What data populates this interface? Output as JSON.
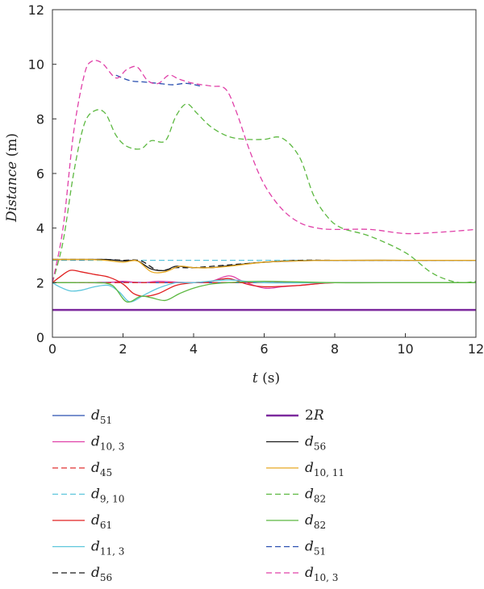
{
  "chart_data": {
    "type": "line",
    "title": "",
    "xlabel": {
      "var": "t",
      "unit": " (s)"
    },
    "ylabel": {
      "var": "Distance",
      "unit": " (m)"
    },
    "xlim": [
      0,
      12
    ],
    "ylim": [
      0,
      12
    ],
    "xticks": [
      0,
      2,
      4,
      6,
      8,
      10,
      12
    ],
    "yticks": [
      0,
      2,
      4,
      6,
      8,
      10,
      12
    ],
    "grid": false,
    "legend_position": "below-plot",
    "series": [
      {
        "name": "d_51",
        "label_main": "d",
        "label_sub": "51",
        "color": "#2a4fb0",
        "dash": "solid",
        "points": [
          [
            0,
            2.0
          ],
          [
            0.5,
            2.0
          ],
          [
            1,
            2.0
          ],
          [
            2,
            2.02
          ],
          [
            3,
            2.0
          ],
          [
            4,
            2.0
          ],
          [
            5,
            2.0
          ],
          [
            6,
            2.0
          ],
          [
            8,
            2.0
          ],
          [
            10,
            2.0
          ],
          [
            12,
            2.0
          ]
        ]
      },
      {
        "name": "d_10,3",
        "label_main": "d",
        "label_sub": "10, 3",
        "color": "#e040a8",
        "dash": "solid",
        "points": [
          [
            0,
            2.0
          ],
          [
            0.6,
            2.0
          ],
          [
            1.5,
            2.0
          ],
          [
            2,
            2.05
          ],
          [
            2.5,
            2.0
          ],
          [
            3,
            2.05
          ],
          [
            3.5,
            2.02
          ],
          [
            4,
            2.0
          ],
          [
            4.5,
            2.05
          ],
          [
            5,
            2.25
          ],
          [
            5.4,
            2.05
          ],
          [
            6,
            1.8
          ],
          [
            6.5,
            1.85
          ],
          [
            7,
            1.9
          ],
          [
            8,
            2.0
          ],
          [
            10,
            2.0
          ],
          [
            12,
            2.0
          ]
        ]
      },
      {
        "name": "d_45",
        "label_main": "d",
        "label_sub": "45",
        "color": "#e03030",
        "dash": "dashed",
        "points": [
          [
            0,
            2.0
          ],
          [
            1,
            2.0
          ],
          [
            2,
            2.0
          ],
          [
            3,
            2.0
          ],
          [
            4,
            2.0
          ],
          [
            5,
            2.0
          ],
          [
            6,
            2.0
          ],
          [
            8,
            2.0
          ],
          [
            10,
            2.0
          ],
          [
            12,
            2.0
          ]
        ]
      },
      {
        "name": "d_9,10",
        "label_main": "d",
        "label_sub": "9, 10",
        "color": "#5cc6dc",
        "dash": "dashed",
        "points": [
          [
            0,
            2.82
          ],
          [
            1,
            2.82
          ],
          [
            2,
            2.82
          ],
          [
            4,
            2.82
          ],
          [
            6,
            2.82
          ],
          [
            8,
            2.82
          ],
          [
            10,
            2.82
          ],
          [
            12,
            2.82
          ]
        ]
      },
      {
        "name": "d_61",
        "label_main": "d",
        "label_sub": "61",
        "color": "#e02020",
        "dash": "solid",
        "points": [
          [
            0,
            2.0
          ],
          [
            0.2,
            2.2
          ],
          [
            0.5,
            2.45
          ],
          [
            0.8,
            2.4
          ],
          [
            1.2,
            2.3
          ],
          [
            1.6,
            2.2
          ],
          [
            2,
            1.95
          ],
          [
            2.3,
            1.6
          ],
          [
            2.6,
            1.5
          ],
          [
            3,
            1.6
          ],
          [
            3.5,
            1.9
          ],
          [
            4,
            2.0
          ],
          [
            4.5,
            2.05
          ],
          [
            5,
            2.15
          ],
          [
            5.5,
            1.95
          ],
          [
            6,
            1.85
          ],
          [
            7,
            1.9
          ],
          [
            8,
            2.0
          ],
          [
            10,
            2.0
          ],
          [
            12,
            2.0
          ]
        ]
      },
      {
        "name": "d_11,3",
        "label_main": "d",
        "label_sub": "11, 3",
        "color": "#5cc6dc",
        "dash": "solid",
        "points": [
          [
            0,
            2.0
          ],
          [
            0.2,
            1.85
          ],
          [
            0.5,
            1.7
          ],
          [
            0.8,
            1.72
          ],
          [
            1.2,
            1.85
          ],
          [
            1.6,
            1.9
          ],
          [
            1.9,
            1.65
          ],
          [
            2.2,
            1.3
          ],
          [
            2.6,
            1.55
          ],
          [
            3,
            1.8
          ],
          [
            3.5,
            2.0
          ],
          [
            4,
            2.0
          ],
          [
            5,
            2.1
          ],
          [
            6,
            2.0
          ],
          [
            8,
            2.0
          ],
          [
            10,
            2.0
          ],
          [
            12,
            2.0
          ]
        ]
      },
      {
        "name": "d_56 (dashed)",
        "label_main": "d",
        "label_sub": "56",
        "color": "#1a1a1a",
        "dash": "dashed",
        "points": [
          [
            0,
            2.85
          ],
          [
            1,
            2.85
          ],
          [
            1.5,
            2.85
          ],
          [
            2,
            2.82
          ],
          [
            2.5,
            2.8
          ],
          [
            3,
            2.45
          ],
          [
            3.5,
            2.55
          ],
          [
            4,
            2.55
          ],
          [
            5,
            2.65
          ],
          [
            6,
            2.75
          ],
          [
            7,
            2.82
          ],
          [
            8,
            2.82
          ],
          [
            10,
            2.82
          ],
          [
            12,
            2.82
          ]
        ]
      },
      {
        "name": "2R",
        "label_main": "2R",
        "label_sub": "",
        "label_prefix": "2",
        "label_var": "R",
        "color": "#7d2a9e",
        "dash": "solid",
        "width": 2.5,
        "points": [
          [
            0,
            1.0
          ],
          [
            12,
            1.0
          ]
        ]
      },
      {
        "name": "d_56",
        "label_main": "d",
        "label_sub": "56",
        "color": "#1a1a1a",
        "dash": "solid",
        "points": [
          [
            0,
            2.85
          ],
          [
            1,
            2.85
          ],
          [
            1.5,
            2.85
          ],
          [
            2,
            2.8
          ],
          [
            2.4,
            2.8
          ],
          [
            2.8,
            2.5
          ],
          [
            3.2,
            2.45
          ],
          [
            3.5,
            2.6
          ],
          [
            4,
            2.55
          ],
          [
            4.5,
            2.55
          ],
          [
            5,
            2.62
          ],
          [
            6,
            2.75
          ],
          [
            7,
            2.8
          ],
          [
            8,
            2.82
          ],
          [
            10,
            2.82
          ],
          [
            12,
            2.82
          ]
        ]
      },
      {
        "name": "d_10,11",
        "label_main": "d",
        "label_sub": "10, 11",
        "color": "#e8a820",
        "dash": "solid",
        "points": [
          [
            0,
            2.85
          ],
          [
            0.5,
            2.85
          ],
          [
            1,
            2.85
          ],
          [
            1.5,
            2.82
          ],
          [
            2,
            2.75
          ],
          [
            2.4,
            2.8
          ],
          [
            2.8,
            2.4
          ],
          [
            3.2,
            2.4
          ],
          [
            3.6,
            2.6
          ],
          [
            4,
            2.55
          ],
          [
            4.5,
            2.55
          ],
          [
            5,
            2.6
          ],
          [
            6,
            2.75
          ],
          [
            7,
            2.8
          ],
          [
            8,
            2.82
          ],
          [
            10,
            2.82
          ],
          [
            12,
            2.82
          ]
        ]
      },
      {
        "name": "d_82 (dashed)",
        "label_main": "d",
        "label_sub": "82",
        "color": "#5cb840",
        "dash": "dashed",
        "points": [
          [
            0,
            2.0
          ],
          [
            0.3,
            3.5
          ],
          [
            0.6,
            6.0
          ],
          [
            0.9,
            7.8
          ],
          [
            1.2,
            8.3
          ],
          [
            1.5,
            8.2
          ],
          [
            1.8,
            7.4
          ],
          [
            2.1,
            7.0
          ],
          [
            2.5,
            6.9
          ],
          [
            2.8,
            7.2
          ],
          [
            3.2,
            7.2
          ],
          [
            3.5,
            8.1
          ],
          [
            3.8,
            8.55
          ],
          [
            4.1,
            8.2
          ],
          [
            4.5,
            7.7
          ],
          [
            5,
            7.35
          ],
          [
            5.5,
            7.25
          ],
          [
            6,
            7.25
          ],
          [
            6.5,
            7.3
          ],
          [
            7,
            6.6
          ],
          [
            7.4,
            5.2
          ],
          [
            7.8,
            4.4
          ],
          [
            8.2,
            4.0
          ],
          [
            9,
            3.7
          ],
          [
            10,
            3.1
          ],
          [
            10.7,
            2.4
          ],
          [
            11.2,
            2.1
          ],
          [
            11.6,
            2.0
          ],
          [
            12,
            2.05
          ]
        ]
      },
      {
        "name": "d_82",
        "label_main": "d",
        "label_sub": "82",
        "color": "#5cb840",
        "dash": "solid",
        "points": [
          [
            0,
            2.0
          ],
          [
            0.5,
            2.0
          ],
          [
            1.2,
            2.0
          ],
          [
            1.7,
            1.9
          ],
          [
            2.1,
            1.3
          ],
          [
            2.5,
            1.5
          ],
          [
            2.8,
            1.45
          ],
          [
            3.2,
            1.35
          ],
          [
            3.6,
            1.6
          ],
          [
            4,
            1.8
          ],
          [
            4.5,
            1.95
          ],
          [
            5,
            2.0
          ],
          [
            6,
            2.05
          ],
          [
            8,
            2.0
          ],
          [
            10,
            2.0
          ],
          [
            12,
            2.0
          ]
        ]
      },
      {
        "name": "d_51 (dashed)",
        "label_main": "d",
        "label_sub": "51",
        "color": "#2a4fb0",
        "dash": "dashed",
        "points": [
          [
            1.8,
            9.6
          ],
          [
            2.2,
            9.4
          ],
          [
            2.6,
            9.35
          ],
          [
            3,
            9.3
          ],
          [
            3.4,
            9.25
          ],
          [
            3.8,
            9.3
          ],
          [
            4.2,
            9.2
          ]
        ]
      },
      {
        "name": "d_10,3 (dashed)",
        "label_main": "d",
        "label_sub": "10, 3",
        "color": "#e040a8",
        "dash": "dashed",
        "points": [
          [
            0,
            2.0
          ],
          [
            0.3,
            4.0
          ],
          [
            0.6,
            7.5
          ],
          [
            0.9,
            9.6
          ],
          [
            1.1,
            10.1
          ],
          [
            1.4,
            10.05
          ],
          [
            1.8,
            9.5
          ],
          [
            2.1,
            9.8
          ],
          [
            2.4,
            9.9
          ],
          [
            2.7,
            9.4
          ],
          [
            3.0,
            9.3
          ],
          [
            3.3,
            9.6
          ],
          [
            3.6,
            9.45
          ],
          [
            4,
            9.3
          ],
          [
            4.5,
            9.2
          ],
          [
            4.9,
            9.1
          ],
          [
            5.2,
            8.3
          ],
          [
            5.6,
            6.8
          ],
          [
            6,
            5.6
          ],
          [
            6.5,
            4.7
          ],
          [
            7,
            4.2
          ],
          [
            7.5,
            4.0
          ],
          [
            8,
            3.95
          ],
          [
            9,
            3.95
          ],
          [
            10,
            3.8
          ],
          [
            11,
            3.85
          ],
          [
            12,
            3.95
          ]
        ]
      }
    ]
  }
}
